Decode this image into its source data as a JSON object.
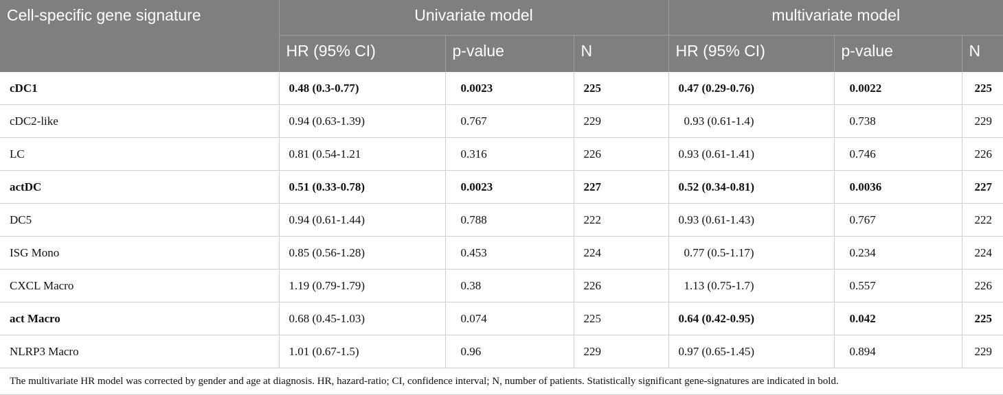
{
  "header": {
    "col1": "Cell-specific gene signature",
    "group_univariate": "Univariate model",
    "group_multivariate": "multivariate model",
    "hr": "HR (95% CI)",
    "pvalue": "p-value",
    "n": "N"
  },
  "rows": [
    {
      "signature": "cDC1",
      "uni_hr": "0.48 (0.3-0.77)",
      "uni_p": "0.0023",
      "uni_n": "225",
      "multi_hr": "0.47 (0.29-0.76)",
      "multi_p": "0.0022",
      "multi_n": "225"
    },
    {
      "signature": "cDC2-like",
      "uni_hr": "0.94 (0.63-1.39)",
      "uni_p": "0.767",
      "uni_n": "229",
      "multi_hr": "0.93 (0.61-1.4)",
      "multi_p": "0.738",
      "multi_n": "229"
    },
    {
      "signature": "LC",
      "uni_hr": "0.81 (0.54-1.21",
      "uni_p": "0.316",
      "uni_n": "226",
      "multi_hr": "0.93 (0.61-1.41)",
      "multi_p": "0.746",
      "multi_n": "226"
    },
    {
      "signature": "actDC",
      "uni_hr": "0.51 (0.33-0.78)",
      "uni_p": "0.0023",
      "uni_n": "227",
      "multi_hr": "0.52 (0.34-0.81)",
      "multi_p": "0.0036",
      "multi_n": "227"
    },
    {
      "signature": "DC5",
      "uni_hr": "0.94 (0.61-1.44)",
      "uni_p": "0.788",
      "uni_n": "222",
      "multi_hr": "0.93 (0.61-1.43)",
      "multi_p": "0.767",
      "multi_n": "222"
    },
    {
      "signature": "ISG Mono",
      "uni_hr": "0.85 (0.56-1.28)",
      "uni_p": "0.453",
      "uni_n": "224",
      "multi_hr": "0.77 (0.5-1.17)",
      "multi_p": "0.234",
      "multi_n": "224"
    },
    {
      "signature": "CXCL Macro",
      "uni_hr": "1.19 (0.79-1.79)",
      "uni_p": "0.38",
      "uni_n": "226",
      "multi_hr": "1.13 (0.75-1.7)",
      "multi_p": "0.557",
      "multi_n": "226"
    },
    {
      "signature": "act Macro",
      "uni_hr": "0.68 (0.45-1.03)",
      "uni_p": "0.074",
      "uni_n": "225",
      "multi_hr": "0.64 (0.42-0.95)",
      "multi_p": "0.042",
      "multi_n": "225"
    },
    {
      "signature": "NLRP3 Macro",
      "uni_hr": "1.01 (0.67-1.5)",
      "uni_p": "0.96",
      "uni_n": "229",
      "multi_hr": "0.97 (0.65-1.45)",
      "multi_p": "0.894",
      "multi_n": "229"
    }
  ],
  "footnote": "The multivariate HR model was corrected by gender and age at diagnosis. HR, hazard-ratio; CI, confidence interval; N, number of patients. Statistically significant gene-signatures are indicated in bold.",
  "colors": {
    "header_bg": "#7f7f7f",
    "header_text": "#ffffff",
    "rule": "#d0d0d0"
  }
}
